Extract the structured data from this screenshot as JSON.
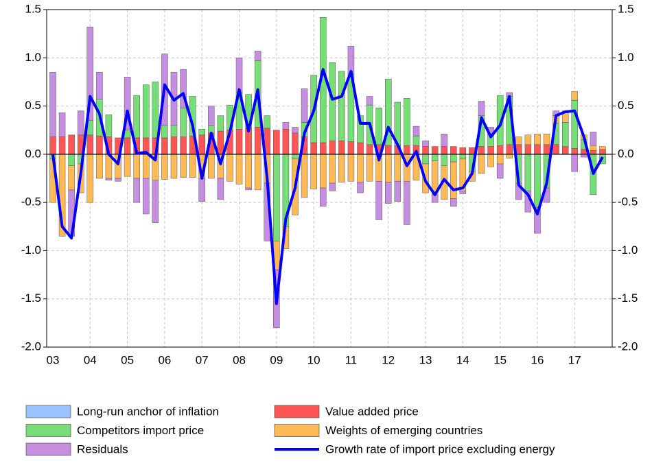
{
  "chart_data": {
    "type": "bar",
    "stacked": true,
    "grid": true,
    "categories": [
      "03",
      null,
      null,
      null,
      "04",
      null,
      null,
      null,
      "05",
      null,
      null,
      null,
      "06",
      null,
      null,
      null,
      "07",
      null,
      null,
      null,
      "08",
      null,
      null,
      null,
      "09",
      null,
      null,
      null,
      "10",
      null,
      null,
      null,
      "11",
      null,
      null,
      null,
      "12",
      null,
      null,
      null,
      "13",
      null,
      null,
      null,
      "14",
      null,
      null,
      null,
      "15",
      null,
      null,
      null,
      "16",
      null,
      null,
      null,
      "17",
      null,
      null,
      null
    ],
    "ylim": [
      -2.0,
      1.5
    ],
    "yticks": [
      1.5,
      {
        "value": 1.0,
        "label": "1.0"
      },
      0.5,
      {
        "value": 0.0,
        "label": "0.0"
      },
      -0.5,
      {
        "value": -1.0,
        "label": "-1.0"
      },
      -1.5,
      {
        "value": -2.0,
        "label": "-2.0"
      }
    ],
    "series": [
      {
        "name": "Long-run anchor of inflation",
        "type": "bar",
        "color": "#99c2ff",
        "values": [
          0,
          0,
          0,
          0,
          0,
          0,
          0,
          0,
          0,
          0,
          0,
          0,
          0,
          0,
          0,
          0,
          0,
          0,
          0,
          0,
          0,
          0,
          0,
          0,
          0,
          0,
          0,
          0,
          0,
          0,
          0,
          0,
          0,
          0,
          0,
          0,
          0,
          0,
          0,
          0,
          0,
          0,
          0,
          0,
          0,
          0,
          0,
          0,
          0,
          0,
          0,
          0,
          0,
          0,
          0,
          0,
          0,
          0,
          0,
          0
        ]
      },
      {
        "name": "Value added price",
        "type": "bar",
        "color": "#ff5555",
        "values": [
          0.18,
          0.18,
          0.2,
          0.2,
          0.2,
          0.19,
          0.18,
          0.17,
          0.17,
          0.17,
          0.17,
          0.17,
          0.17,
          0.18,
          0.18,
          0.19,
          0.2,
          0.22,
          0.24,
          0.25,
          0.26,
          0.27,
          0.28,
          0.27,
          0.25,
          0.26,
          0.22,
          0.18,
          0.12,
          0.12,
          0.14,
          0.14,
          0.13,
          0.12,
          0.1,
          0.1,
          0.09,
          0.09,
          0.09,
          0.09,
          0.08,
          0.08,
          0.08,
          0.08,
          0.07,
          0.07,
          0.08,
          0.08,
          0.09,
          0.1,
          0.1,
          0.1,
          0.1,
          0.1,
          0.1,
          0.08,
          0.06,
          0.05,
          0.04,
          0.05
        ]
      },
      {
        "name": "Competitors import price",
        "type": "bar",
        "color": "#77dd77",
        "values": [
          -0.05,
          0,
          -0.12,
          -0.1,
          0.15,
          0.38,
          0.23,
          0,
          0.08,
          0.44,
          0.55,
          0.58,
          0.13,
          0.12,
          0.3,
          0.41,
          0.06,
          0.08,
          0.16,
          0.26,
          0.38,
          0.35,
          0.69,
          0.13,
          -0.9,
          -0.75,
          -0.05,
          0.15,
          0.7,
          1.3,
          0.81,
          0.72,
          0.7,
          0.28,
          0.41,
          0.38,
          0.69,
          0.45,
          0.49,
          0.1,
          -0.1,
          -0.07,
          -0.12,
          -0.08,
          -0.05,
          -0.18,
          0.32,
          0.12,
          0.52,
          0.5,
          -0.3,
          -0.38,
          -0.55,
          -0.35,
          0.22,
          0.25,
          0.5,
          0.1,
          -0.42,
          -0.1
        ]
      },
      {
        "name": "Weights of emerging countries",
        "type": "bar",
        "color": "#ffb955",
        "values": [
          -0.45,
          -0.85,
          -0.25,
          -0.3,
          -0.5,
          -0.25,
          -0.25,
          -0.25,
          -0.23,
          -0.25,
          -0.25,
          -0.27,
          -0.26,
          -0.25,
          -0.24,
          -0.24,
          -0.25,
          -0.25,
          -0.25,
          -0.28,
          -0.31,
          -0.35,
          -0.37,
          -0.3,
          -0.3,
          -0.23,
          -0.58,
          -0.45,
          -0.36,
          -0.35,
          -0.3,
          -0.29,
          -0.28,
          -0.29,
          -0.28,
          -0.28,
          -0.29,
          -0.28,
          -0.28,
          -0.27,
          -0.3,
          -0.35,
          -0.35,
          -0.38,
          -0.33,
          -0.1,
          -0.2,
          -0.13,
          -0.1,
          -0.04,
          0.08,
          0.1,
          0.11,
          0.11,
          0.08,
          0.1,
          0.09,
          0.05,
          0.05,
          0.03
        ]
      },
      {
        "name": "Residuals",
        "type": "bar",
        "color": "#c58ee0",
        "values": [
          0.67,
          0.25,
          -0.48,
          0.25,
          0.97,
          0.28,
          -0.02,
          -0.03,
          0.55,
          -0.25,
          -0.37,
          -0.44,
          0.74,
          0.55,
          0.4,
          0,
          -0.24,
          0.2,
          -0.22,
          0,
          0.36,
          -0.02,
          0.1,
          -0.6,
          -0.6,
          0.07,
          0.06,
          0.35,
          0,
          -0.19,
          -0.08,
          0,
          0.29,
          -0.11,
          0.09,
          -0.4,
          -0.22,
          -0.21,
          -0.45,
          0.1,
          0.06,
          -0.08,
          0.13,
          -0.08,
          -0.03,
          0,
          0.15,
          0.08,
          -0.15,
          0.04,
          -0.17,
          -0.22,
          -0.27,
          -0.15,
          0.05,
          0.02,
          -0.18,
          -0.03,
          0.14,
          0
        ]
      },
      {
        "name": "Growth rate of import price excluding energy",
        "type": "line",
        "color": "#0000ff",
        "values": [
          0,
          -0.75,
          -0.87,
          -0.2,
          0.6,
          0.42,
          0,
          -0.1,
          0.45,
          0.01,
          0.02,
          -0.06,
          0.72,
          0.56,
          0.63,
          0.3,
          -0.25,
          0.22,
          -0.1,
          0.23,
          0.67,
          0.24,
          0.67,
          -0.25,
          -1.55,
          -0.67,
          -0.35,
          0.22,
          0.45,
          0.88,
          0.57,
          0.6,
          0.86,
          0.32,
          0.32,
          -0.06,
          0.28,
          0.1,
          -0.12,
          0.03,
          -0.28,
          -0.42,
          -0.26,
          -0.37,
          -0.35,
          -0.2,
          0.38,
          0.18,
          0.3,
          0.6,
          -0.32,
          -0.42,
          -0.62,
          -0.3,
          0.4,
          0.44,
          0.45,
          0.18,
          -0.2,
          -0.03
        ]
      }
    ]
  }
}
